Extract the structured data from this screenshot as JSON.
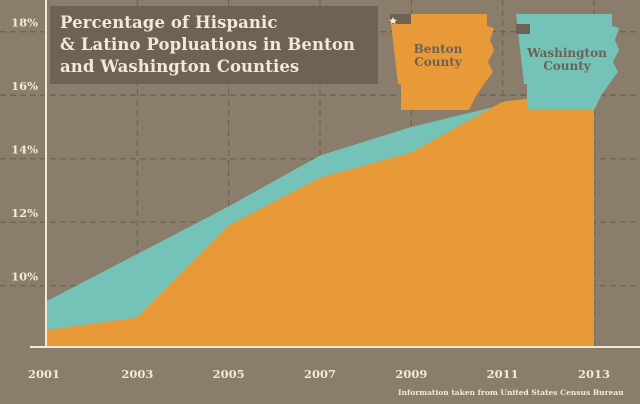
{
  "title_lines": [
    "Percentage of Hispanic",
    "& Latino Popluations in Benton",
    "and Washington Counties"
  ],
  "map_labels": {
    "benton": [
      "Benton",
      "County"
    ],
    "washington": [
      "Washington",
      "County"
    ]
  },
  "source": "Information taken from United States Census Bureau",
  "colors": {
    "background": "#8b7d6b",
    "benton": "#e89a38",
    "washington": "#74c2b8",
    "text": "#f4e9d6",
    "title_box": "#6f6153",
    "county_mark": "#6f6153"
  },
  "chart_data": {
    "type": "area",
    "x": [
      2001,
      2003,
      2005,
      2007,
      2009,
      2011,
      2013
    ],
    "series": [
      {
        "name": "Washington County",
        "values": [
          9.5,
          11.0,
          12.5,
          14.1,
          15.0,
          15.7,
          16.1
        ]
      },
      {
        "name": "Benton County",
        "values": [
          8.6,
          9.0,
          11.9,
          13.4,
          14.2,
          15.8,
          16.1
        ]
      }
    ],
    "x_ticks": [
      "2001",
      "2003",
      "2005",
      "2007",
      "2009",
      "2011",
      "2013"
    ],
    "y_ticks": [
      "10%",
      "12%",
      "14%",
      "16%",
      "18%"
    ],
    "y_tick_values": [
      10,
      12,
      14,
      16,
      18
    ],
    "ylim": [
      8.1,
      19
    ],
    "grid": true
  }
}
